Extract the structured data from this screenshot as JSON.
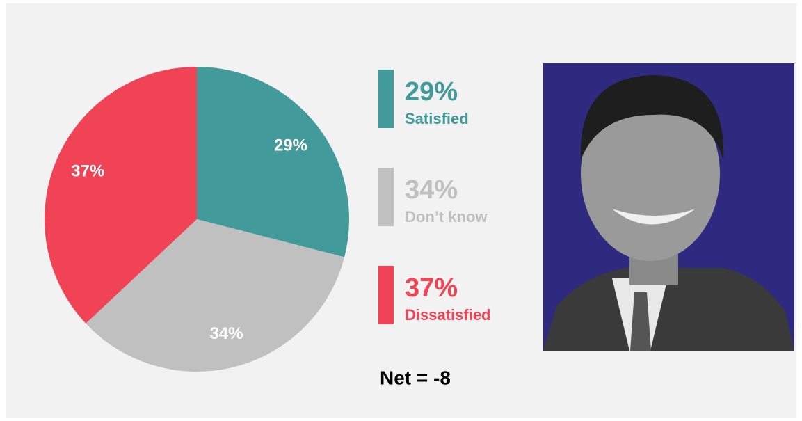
{
  "chart_data": {
    "type": "pie",
    "categories": [
      "Satisfied",
      "Don’t know",
      "Dissatisfied"
    ],
    "values": [
      29,
      34,
      37
    ],
    "value_labels": [
      "29%",
      "34%",
      "37%"
    ],
    "colors": [
      "#429a9a",
      "#c0c0c0",
      "#f04355"
    ],
    "annotation": "Net = -8"
  }
}
